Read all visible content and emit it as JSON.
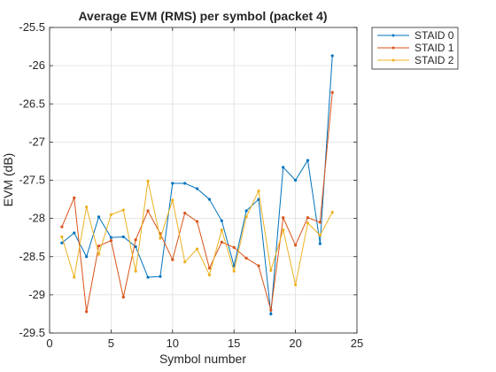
{
  "chart_data": {
    "type": "line",
    "title": "Average EVM (RMS) per symbol (packet 4)",
    "xlabel": "Symbol number",
    "ylabel": "EVM (dB)",
    "xlim": [
      0,
      25
    ],
    "ylim": [
      -29.5,
      -25.5
    ],
    "x_ticks": [
      "0",
      "5",
      "10",
      "15",
      "20",
      "25"
    ],
    "y_ticks": [
      "-25.5",
      "-26",
      "-26.5",
      "-27",
      "-27.5",
      "-28",
      "-28.5",
      "-29",
      "-29.5"
    ],
    "grid": true,
    "legend_position": "outside top-right",
    "x": [
      1,
      2,
      3,
      4,
      5,
      6,
      7,
      8,
      9,
      10,
      11,
      12,
      13,
      14,
      15,
      16,
      17,
      18,
      19,
      20,
      21,
      22,
      23
    ],
    "series": [
      {
        "name": "STAID 0",
        "color": "#0072BD",
        "values": [
          -28.32,
          -28.19,
          -28.5,
          -27.98,
          -28.25,
          -28.24,
          -28.37,
          -28.77,
          -28.76,
          -27.54,
          -27.54,
          -27.61,
          -27.75,
          -28.03,
          -28.62,
          -27.9,
          -27.75,
          -29.25,
          -27.33,
          -27.5,
          -27.24,
          -28.33,
          -25.87
        ]
      },
      {
        "name": "STAID 1",
        "color": "#D95319",
        "values": [
          -28.11,
          -27.73,
          -29.22,
          -28.36,
          -28.29,
          -29.03,
          -28.28,
          -27.9,
          -28.2,
          -28.54,
          -27.93,
          -28.04,
          -28.65,
          -28.31,
          -28.38,
          -28.52,
          -28.62,
          -29.2,
          -27.99,
          -28.35,
          -27.99,
          -28.05,
          -26.35
        ]
      },
      {
        "name": "STAID 2",
        "color": "#EDB120",
        "values": [
          -28.24,
          -28.77,
          -27.85,
          -28.47,
          -27.95,
          -27.89,
          -28.69,
          -27.51,
          -28.26,
          -27.76,
          -28.57,
          -28.4,
          -28.74,
          -28.15,
          -28.69,
          -27.98,
          -27.64,
          -28.68,
          -28.15,
          -28.87,
          -28.06,
          -28.22,
          -27.92
        ]
      }
    ]
  }
}
